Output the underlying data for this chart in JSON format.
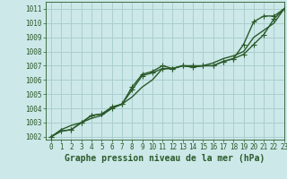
{
  "title": "Graphe pression niveau de la mer (hPa)",
  "background_color": "#cce8e8",
  "grid_color": "#aacece",
  "text_color": "#2a5a2a",
  "line_color": "#2a5a2a",
  "xlim": [
    -0.5,
    23
  ],
  "ylim": [
    1001.8,
    1011.5
  ],
  "yticks": [
    1002,
    1003,
    1004,
    1005,
    1006,
    1007,
    1008,
    1009,
    1010,
    1011
  ],
  "xticks": [
    0,
    1,
    2,
    3,
    4,
    5,
    6,
    7,
    8,
    9,
    10,
    11,
    12,
    13,
    14,
    15,
    16,
    17,
    18,
    19,
    20,
    21,
    22,
    23
  ],
  "series": [
    {
      "y": [
        1002.0,
        1002.4,
        1002.5,
        1003.0,
        1003.5,
        1003.6,
        1004.0,
        1004.3,
        1005.5,
        1006.4,
        1006.6,
        1007.0,
        1006.8,
        1007.0,
        1007.0,
        1007.0,
        1007.0,
        1007.3,
        1007.5,
        1008.5,
        1010.1,
        1010.5,
        1010.5,
        1011.0
      ],
      "marker": true,
      "linewidth": 1.0
    },
    {
      "y": [
        1002.0,
        1002.5,
        1002.8,
        1003.0,
        1003.3,
        1003.5,
        1004.0,
        1004.3,
        1004.8,
        1005.5,
        1006.0,
        1006.8,
        1006.8,
        1007.0,
        1006.9,
        1007.0,
        1007.2,
        1007.5,
        1007.7,
        1008.0,
        1009.0,
        1009.5,
        1010.0,
        1011.0
      ],
      "marker": false,
      "linewidth": 1.0
    },
    {
      "y": [
        1002.0,
        1002.4,
        1002.5,
        1003.0,
        1003.5,
        1003.6,
        1004.1,
        1004.3,
        1005.3,
        1006.3,
        1006.5,
        1006.8,
        1006.8,
        1007.0,
        1006.9,
        1007.0,
        1007.0,
        1007.3,
        1007.5,
        1007.8,
        1008.5,
        1009.2,
        1010.3,
        1011.0
      ],
      "marker": true,
      "linewidth": 1.0
    }
  ],
  "marker_style": "+",
  "marker_size": 4,
  "font_size_label": 7,
  "font_size_tick": 5.5
}
